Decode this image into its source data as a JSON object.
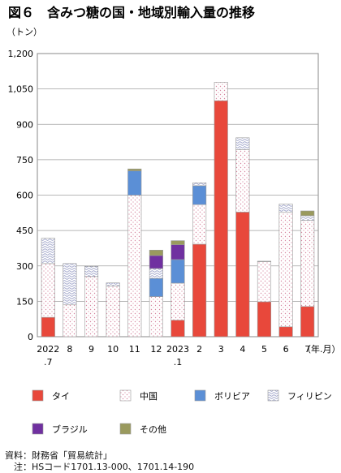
{
  "chart_data": {
    "type": "bar",
    "stacked": true,
    "title": "図６　含みつ糖の国・地域別輸入量の推移",
    "yunit": "（トン）",
    "xunit": "（年.月）",
    "ylim": [
      0,
      1200
    ],
    "yticks": [
      "0",
      "150",
      "300",
      "450",
      "600",
      "750",
      "900",
      "1,050",
      "1,200"
    ],
    "ytick_values": [
      0,
      150,
      300,
      450,
      600,
      750,
      900,
      1050,
      1200
    ],
    "categories": [
      "2022",
      "8",
      "9",
      "10",
      "11",
      "12",
      "2023",
      "2",
      "3",
      "4",
      "5",
      "6",
      "7"
    ],
    "category_sublabels": [
      ".7",
      "",
      "",
      "",
      "",
      "",
      ".1",
      "",
      "",
      "",
      "",
      "",
      ""
    ],
    "series": [
      {
        "name": "タイ",
        "color": "#e8483b",
        "pattern": "solid",
        "values": [
          82,
          0,
          0,
          0,
          0,
          0,
          70,
          392,
          1000,
          528,
          148,
          42,
          128
        ]
      },
      {
        "name": "中国",
        "color": "#e0a0b8",
        "pattern": "dots",
        "values": [
          228,
          135,
          255,
          215,
          600,
          170,
          157,
          168,
          78,
          265,
          170,
          485,
          365
        ]
      },
      {
        "name": "ボリビア",
        "color": "#5b8fd6",
        "pattern": "solid",
        "values": [
          0,
          0,
          0,
          0,
          103,
          77,
          100,
          80,
          0,
          0,
          0,
          0,
          0
        ]
      },
      {
        "name": "フィリピン",
        "color": "#8890c0",
        "pattern": "waves",
        "values": [
          107,
          175,
          43,
          13,
          0,
          42,
          0,
          12,
          0,
          50,
          2,
          35,
          20
        ]
      },
      {
        "name": "ブラジル",
        "color": "#7030a0",
        "pattern": "solid",
        "values": [
          0,
          0,
          0,
          0,
          0,
          55,
          63,
          0,
          0,
          0,
          0,
          0,
          0
        ]
      },
      {
        "name": "その他",
        "color": "#9a9a5e",
        "pattern": "solid",
        "values": [
          0,
          0,
          0,
          0,
          8,
          23,
          17,
          0,
          0,
          0,
          0,
          0,
          20
        ]
      }
    ]
  },
  "notes": {
    "source": "資料：財務省「貿易統計」",
    "note": "　注：HSコード1701.13-000、1701.14-190"
  }
}
